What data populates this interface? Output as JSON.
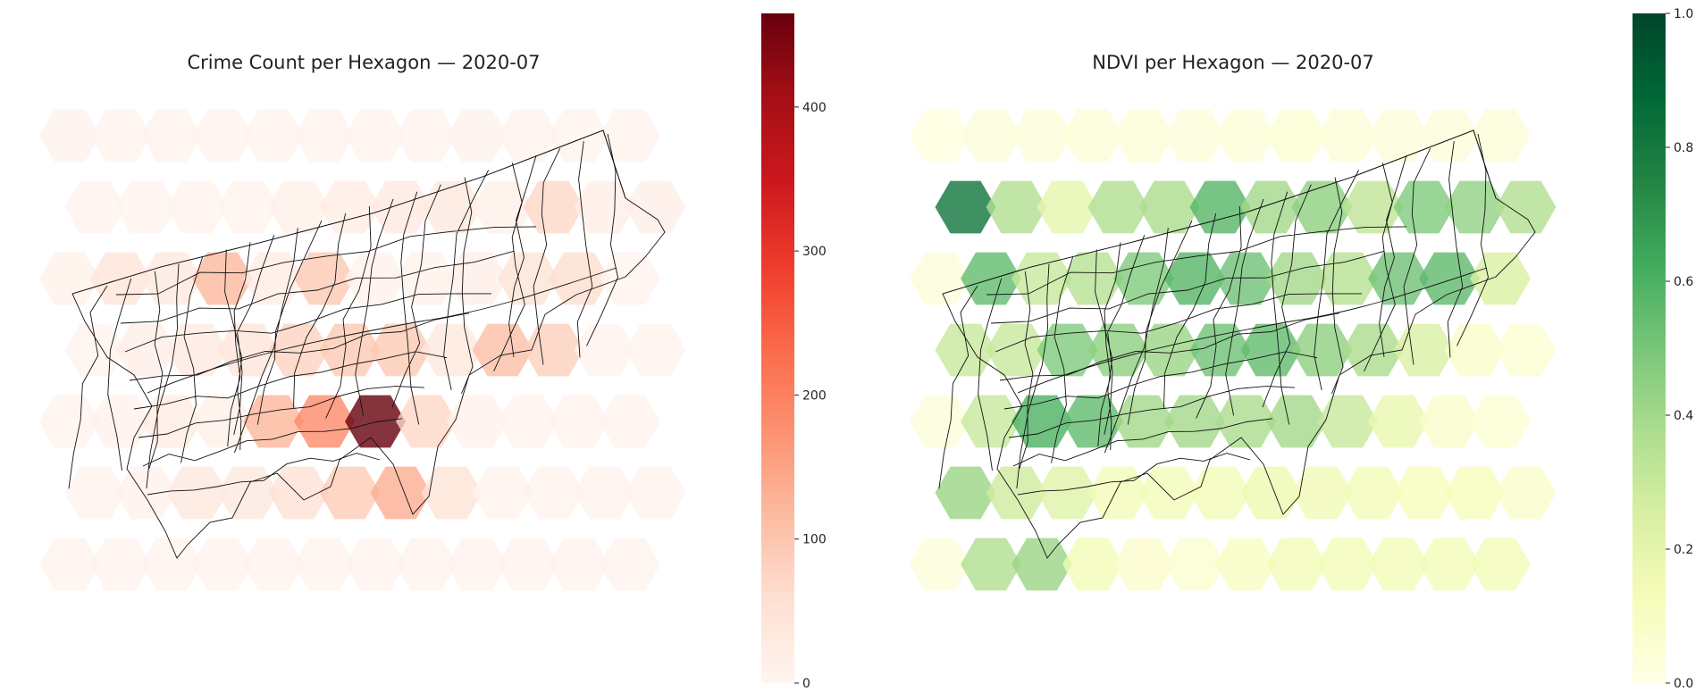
{
  "chart_data": [
    {
      "type": "heatmap",
      "title": "Crime Count per Hexagon — 2020-07",
      "colormap": "Reds",
      "colorbar": {
        "min": 0,
        "max": 465,
        "ticks": [
          "0",
          "100",
          "200",
          "300",
          "400"
        ]
      },
      "grid": false,
      "legend": "colorbar-right",
      "hex_values": [
        [
          8,
          5,
          5,
          5,
          5,
          5,
          5,
          5,
          8,
          5,
          5,
          5
        ],
        [
          5,
          5,
          5,
          5,
          15,
          25,
          30,
          35,
          15,
          70,
          20,
          18
        ],
        [
          12,
          45,
          35,
          120,
          25,
          95,
          10,
          12,
          20,
          50,
          60,
          5
        ],
        [
          5,
          20,
          30,
          45,
          80,
          95,
          95,
          35,
          110,
          85,
          5,
          5
        ],
        [
          5,
          10,
          25,
          15,
          125,
          185,
          465,
          70,
          10,
          5,
          5,
          5
        ],
        [
          5,
          10,
          35,
          35,
          55,
          90,
          135,
          50,
          5,
          5,
          5,
          5
        ],
        [
          5,
          5,
          5,
          5,
          5,
          5,
          5,
          5,
          5,
          5,
          5,
          5
        ]
      ]
    },
    {
      "type": "heatmap",
      "title": "NDVI per Hexagon — 2020-07",
      "colormap": "YlGn",
      "colorbar": {
        "min": 0.0,
        "max": 1.0,
        "ticks": [
          "0.0",
          "0.2",
          "0.4",
          "0.6",
          "0.8",
          "1.0"
        ]
      },
      "grid": false,
      "legend": "colorbar-right",
      "hex_values": [
        [
          0.02,
          0.03,
          0.03,
          0.04,
          0.04,
          0.03,
          0.04,
          0.05,
          0.04,
          0.03,
          0.03,
          0.04
        ],
        [
          0.82,
          0.36,
          0.2,
          0.36,
          0.38,
          0.58,
          0.4,
          0.45,
          0.32,
          0.48,
          0.44,
          0.36
        ],
        [
          0.03,
          0.55,
          0.3,
          0.35,
          0.48,
          0.58,
          0.52,
          0.4,
          0.35,
          0.52,
          0.56,
          0.25
        ],
        [
          0.3,
          0.3,
          0.48,
          0.45,
          0.42,
          0.52,
          0.55,
          0.45,
          0.38,
          0.25,
          0.08,
          0.05
        ],
        [
          0.03,
          0.3,
          0.6,
          0.55,
          0.4,
          0.4,
          0.38,
          0.4,
          0.3,
          0.18,
          0.08,
          0.05
        ],
        [
          0.42,
          0.28,
          0.22,
          0.14,
          0.14,
          0.14,
          0.16,
          0.15,
          0.14,
          0.12,
          0.12,
          0.08
        ],
        [
          0.03,
          0.36,
          0.42,
          0.14,
          0.07,
          0.06,
          0.1,
          0.14,
          0.14,
          0.14,
          0.14,
          0.14
        ]
      ]
    }
  ]
}
